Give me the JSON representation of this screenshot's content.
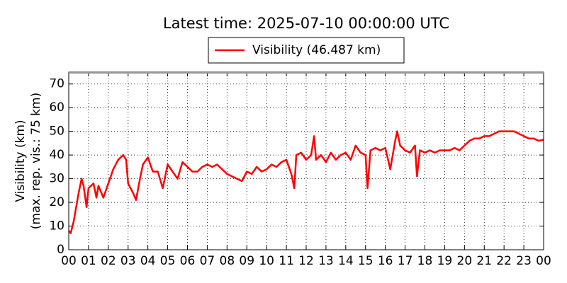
{
  "chart_data": {
    "type": "line",
    "title": "Latest time: 2025-07-10 00:00:00 UTC",
    "ylabel": [
      "Visibility (km)",
      "(max. rep. vis.: 75 km)"
    ],
    "xlim": [
      0,
      24
    ],
    "ylim": [
      0,
      75
    ],
    "xticks": [
      {
        "value": 0,
        "label": "00"
      },
      {
        "value": 1,
        "label": "01"
      },
      {
        "value": 2,
        "label": "02"
      },
      {
        "value": 3,
        "label": "03"
      },
      {
        "value": 4,
        "label": "04"
      },
      {
        "value": 5,
        "label": "05"
      },
      {
        "value": 6,
        "label": "06"
      },
      {
        "value": 7,
        "label": "07"
      },
      {
        "value": 8,
        "label": "08"
      },
      {
        "value": 9,
        "label": "09"
      },
      {
        "value": 10,
        "label": "10"
      },
      {
        "value": 11,
        "label": "11"
      },
      {
        "value": 12,
        "label": "12"
      },
      {
        "value": 13,
        "label": "13"
      },
      {
        "value": 14,
        "label": "14"
      },
      {
        "value": 15,
        "label": "15"
      },
      {
        "value": 16,
        "label": "16"
      },
      {
        "value": 17,
        "label": "17"
      },
      {
        "value": 18,
        "label": "18"
      },
      {
        "value": 19,
        "label": "19"
      },
      {
        "value": 20,
        "label": "20"
      },
      {
        "value": 21,
        "label": "21"
      },
      {
        "value": 22,
        "label": "22"
      },
      {
        "value": 23,
        "label": "23"
      },
      {
        "value": 24,
        "label": "00"
      }
    ],
    "yticks": [
      0,
      10,
      20,
      30,
      40,
      50,
      60,
      70
    ],
    "grid": true,
    "legend": "top",
    "x": [
      0,
      0.1,
      0.25,
      0.5,
      0.65,
      0.75,
      0.9,
      1,
      1.25,
      1.4,
      1.5,
      1.75,
      2,
      2.25,
      2.5,
      2.75,
      2.9,
      3,
      3.25,
      3.4,
      3.6,
      3.75,
      4,
      4.25,
      4.5,
      4.75,
      5,
      5.25,
      5.5,
      5.75,
      6,
      6.25,
      6.5,
      6.75,
      7,
      7.25,
      7.5,
      7.75,
      8,
      8.25,
      8.5,
      8.75,
      9,
      9.25,
      9.5,
      9.75,
      10,
      10.25,
      10.5,
      10.75,
      11,
      11.25,
      11.4,
      11.5,
      11.75,
      12,
      12.25,
      12.4,
      12.5,
      12.75,
      13,
      13.25,
      13.5,
      13.75,
      14,
      14.25,
      14.5,
      14.75,
      15,
      15.1,
      15.25,
      15.5,
      15.75,
      16,
      16.25,
      16.5,
      16.6,
      16.75,
      17,
      17.25,
      17.5,
      17.6,
      17.75,
      18,
      18.25,
      18.5,
      18.75,
      19,
      19.25,
      19.5,
      19.75,
      20,
      20.25,
      20.5,
      20.75,
      21,
      21.25,
      21.5,
      21.75,
      22,
      22.25,
      22.5,
      22.75,
      23,
      23.25,
      23.5,
      23.75,
      24
    ],
    "series": [
      {
        "name": "Visibility (46.487 km)",
        "color": "#ff0000",
        "values": [
          8,
          7,
          12,
          24,
          30,
          27,
          18,
          26,
          28,
          22,
          27,
          22,
          28,
          34,
          38,
          40,
          38,
          28,
          24,
          21,
          30,
          36,
          39,
          33,
          33,
          26,
          36,
          33,
          30,
          37,
          35,
          33,
          33,
          35,
          36,
          35,
          36,
          34,
          32,
          31,
          30,
          29,
          33,
          32,
          35,
          33,
          34,
          36,
          35,
          37,
          38,
          32,
          26,
          40,
          41,
          38,
          40,
          48,
          38,
          40,
          37,
          41,
          38,
          40,
          41,
          38,
          44,
          41,
          40,
          26,
          42,
          43,
          42,
          43,
          34,
          46,
          50,
          44,
          42,
          41,
          44,
          31,
          42,
          41,
          42,
          41,
          42,
          42,
          42,
          43,
          42,
          44,
          46,
          47,
          47,
          48,
          48,
          49,
          50,
          50,
          50,
          50,
          49,
          48,
          47,
          47,
          46,
          46.5
        ]
      }
    ]
  }
}
